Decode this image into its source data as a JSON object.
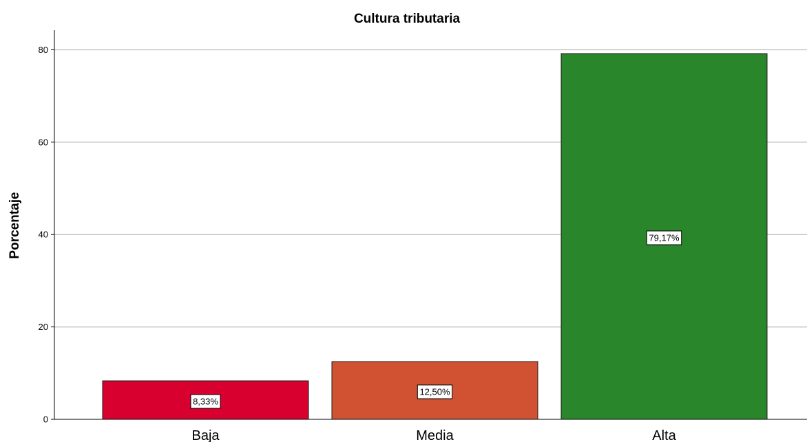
{
  "chart_data": {
    "type": "bar",
    "title": "Cultura tributaria",
    "xlabel": "",
    "ylabel": "Porcentaje",
    "categories": [
      "Baja",
      "Media",
      "Alta"
    ],
    "values": [
      8.33,
      12.5,
      79.17
    ],
    "data_labels": [
      "8,33%",
      "12,50%",
      "79,17%"
    ],
    "colors": [
      "#d8002e",
      "#d05233",
      "#2a862a"
    ],
    "ylim": [
      0,
      84
    ],
    "yticks": [
      0,
      20,
      40,
      60,
      80
    ],
    "grid": true,
    "legend": "none"
  }
}
